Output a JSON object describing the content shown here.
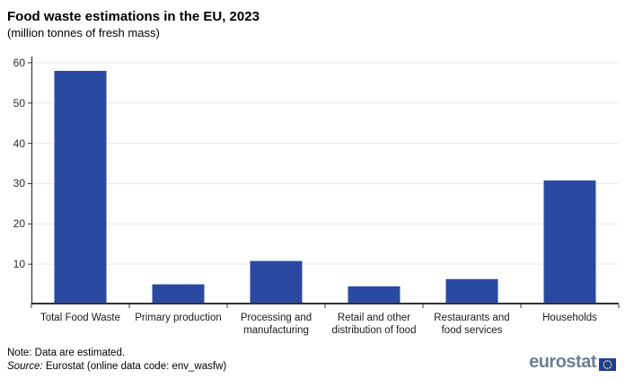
{
  "header": {
    "title": "Food waste estimations in the EU, 2023",
    "subtitle": "(million tonnes of fresh mass)"
  },
  "chart_data": {
    "type": "bar",
    "title": "Food waste estimations in the EU, 2023",
    "subtitle": "(million tonnes of fresh mass)",
    "categories": [
      "Total Food Waste",
      "Primary production",
      "Processing and manufacturing",
      "Retail and other distribution of food",
      "Restaurants and food services",
      "Households"
    ],
    "values": [
      58,
      5,
      10.8,
      4.5,
      6.3,
      30.8
    ],
    "xlabel": "",
    "ylabel": "",
    "ylim": [
      0,
      61.1
    ],
    "yticks": [
      10,
      20,
      30,
      40,
      50,
      60
    ],
    "grid": true,
    "legend": "none",
    "bar_color": "#2a4aa2",
    "gridline_color": "#e9e9e9",
    "axis_color": "#333333"
  },
  "footer": {
    "note": "Note: Data are estimated.",
    "source_label": "Source:",
    "source_text": " Eurostat (online data code: env_wasfw)",
    "logo_text": "eurostat"
  },
  "colors": {
    "bar": "#2a4aa2",
    "logo_text": "#6f7f92",
    "flag_blue": "#1b3e9e",
    "flag_stars": "#f8d12e"
  }
}
